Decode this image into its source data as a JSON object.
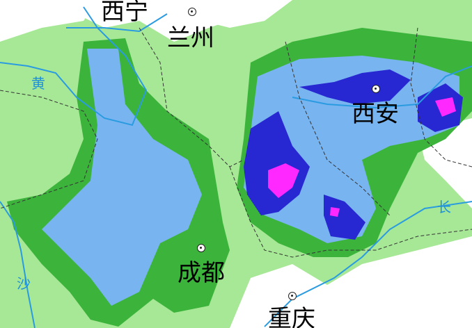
{
  "map": {
    "colors": {
      "background": "#ffffff",
      "light_rain": "#a6e895",
      "moderate_rain": "#3cb43c",
      "heavy_rain": "#78b4f0",
      "rainstorm": "#2828d2",
      "heavy_rainstorm": "#ff28ff",
      "river": "#2a9be0",
      "boundary": "#333333"
    },
    "cities": [
      {
        "name": "西宁",
        "icon": "city-marker-icon"
      },
      {
        "name": "兰州",
        "icon": "city-marker-icon"
      },
      {
        "name": "西安",
        "icon": "city-marker-icon"
      },
      {
        "name": "成都",
        "icon": "city-marker-icon"
      },
      {
        "name": "重庆",
        "icon": "city-marker-icon"
      }
    ],
    "rivers": [
      {
        "label": "黄"
      },
      {
        "label": "长"
      },
      {
        "label": "沙"
      }
    ]
  }
}
